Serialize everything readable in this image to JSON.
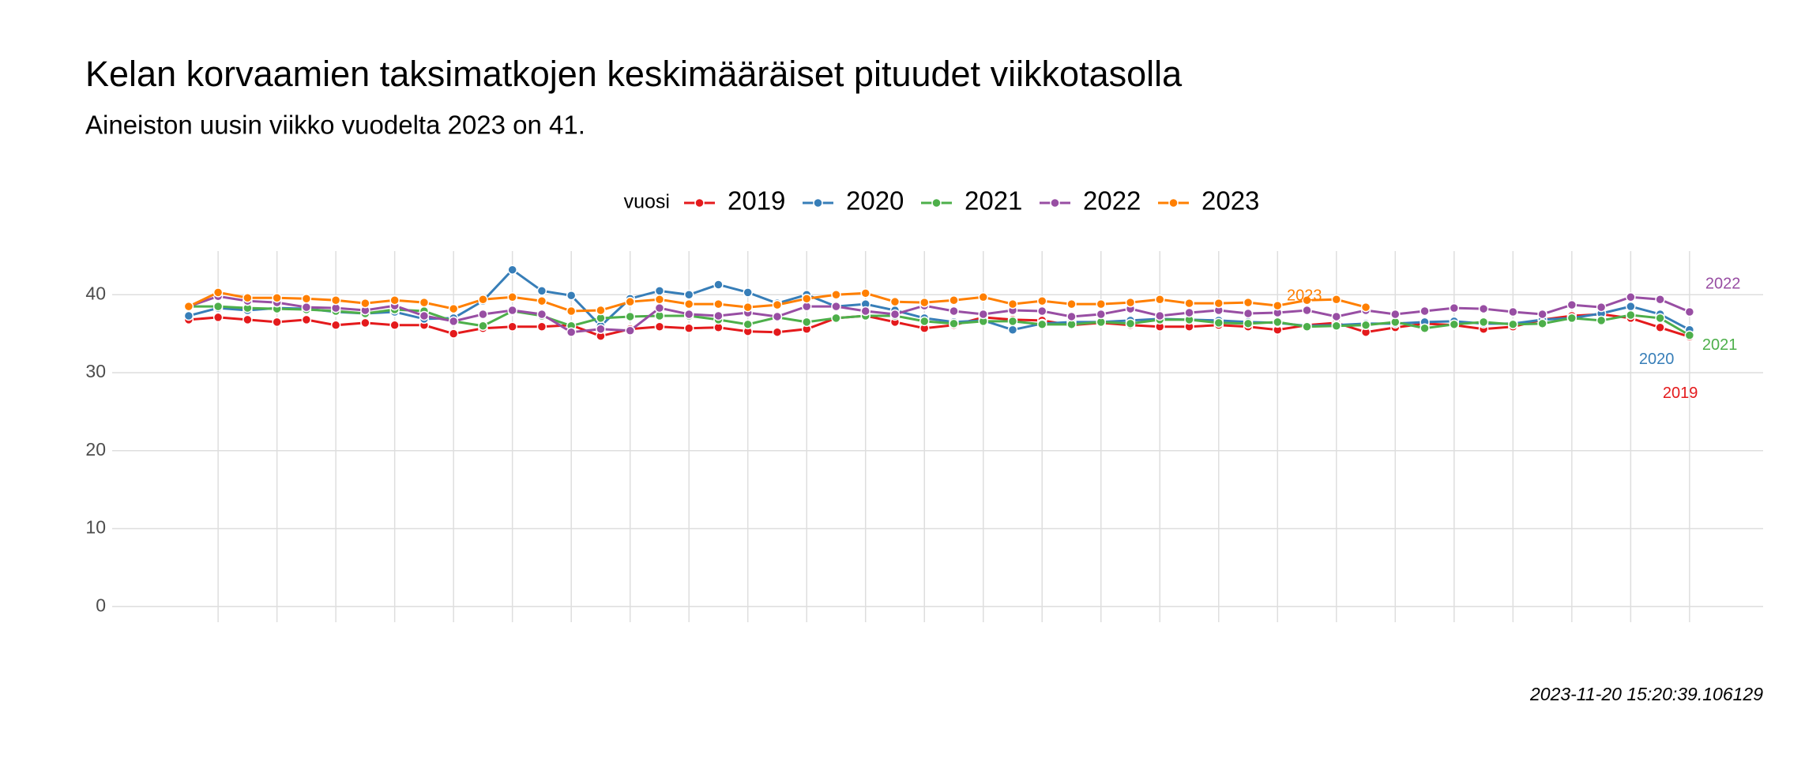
{
  "chart_data": {
    "type": "line",
    "title": "Kelan korvaamien taksimatkojen keskimääräiset pituudet viikkotasolla",
    "subtitle": "Aineiston uusin viikko vuodelta 2023 on 41.",
    "legend_title": "vuosi",
    "legend_position": "top",
    "caption": "2023-11-20 15:20:39.106129",
    "grid": true,
    "x": [
      1,
      2,
      3,
      4,
      5,
      6,
      7,
      8,
      9,
      10,
      11,
      12,
      13,
      14,
      15,
      16,
      17,
      18,
      19,
      20,
      21,
      22,
      23,
      24,
      25,
      26,
      27,
      28,
      29,
      30,
      31,
      32,
      33,
      34,
      35,
      36,
      37,
      38,
      39,
      40,
      41,
      42,
      43,
      44,
      45,
      46,
      47,
      48,
      49,
      50,
      51,
      52
    ],
    "xlim": [
      -1.6,
      54.5
    ],
    "xticks": [
      2,
      4,
      6,
      8,
      10,
      12,
      14,
      16,
      18,
      20,
      22,
      24,
      26,
      28,
      30,
      32,
      34,
      36,
      38,
      40,
      42,
      44,
      46,
      48,
      50,
      52
    ],
    "ylim": [
      -2,
      45.6
    ],
    "yticks": [
      0,
      10,
      20,
      30,
      40
    ],
    "series": [
      {
        "name": "2019",
        "color": "#e41a1c",
        "values": [
          36.8,
          37.1,
          36.8,
          36.5,
          36.8,
          36.1,
          36.4,
          36.1,
          36.1,
          35.0,
          35.7,
          35.9,
          35.9,
          36.1,
          34.7,
          35.6,
          35.9,
          35.7,
          35.8,
          35.3,
          35.2,
          35.6,
          37.0,
          37.3,
          36.5,
          35.7,
          36.1,
          37.1,
          36.8,
          36.7,
          36.1,
          36.4,
          36.1,
          35.9,
          35.9,
          36.1,
          35.9,
          35.5,
          36.1,
          36.4,
          35.2,
          35.8,
          36.3,
          36.1,
          35.6,
          35.9,
          36.8,
          37.3,
          37.5,
          37.0,
          35.8,
          34.6
        ]
      },
      {
        "name": "2020",
        "color": "#377eb8",
        "values": [
          37.3,
          38.3,
          38.0,
          38.3,
          38.2,
          37.8,
          37.6,
          37.8,
          36.9,
          37.0,
          39.2,
          43.2,
          40.5,
          39.9,
          36.0,
          39.5,
          40.5,
          40.0,
          41.3,
          40.3,
          38.9,
          40.0,
          38.5,
          38.8,
          38.0,
          37.0,
          36.5,
          36.7,
          35.5,
          36.3,
          36.5,
          36.5,
          36.7,
          36.9,
          36.8,
          36.7,
          36.5,
          36.4,
          36.0,
          36.1,
          36.3,
          36.3,
          36.5,
          36.6,
          36.3,
          36.3,
          36.8,
          37.0,
          37.6,
          38.5,
          37.5,
          35.5
        ]
      },
      {
        "name": "2021",
        "color": "#4daf4a",
        "values": [
          38.5,
          38.5,
          38.3,
          38.2,
          38.1,
          37.9,
          37.6,
          38.1,
          37.9,
          36.6,
          36.0,
          37.9,
          37.3,
          36.0,
          37.0,
          37.2,
          37.3,
          37.3,
          36.8,
          36.2,
          37.1,
          36.5,
          37.0,
          37.3,
          37.3,
          36.6,
          36.3,
          36.6,
          36.6,
          36.2,
          36.2,
          36.5,
          36.3,
          36.8,
          36.8,
          36.4,
          36.3,
          36.5,
          35.9,
          36.0,
          36.1,
          36.5,
          35.7,
          36.2,
          36.5,
          36.2,
          36.3,
          37.0,
          36.7,
          37.4,
          37.0,
          34.8
        ]
      },
      {
        "name": "2022",
        "color": "#984ea3",
        "values": [
          38.5,
          39.8,
          39.2,
          39.0,
          38.4,
          38.3,
          38.0,
          38.6,
          37.3,
          36.6,
          37.5,
          38.0,
          37.5,
          35.2,
          35.6,
          35.4,
          38.3,
          37.5,
          37.3,
          37.7,
          37.2,
          38.5,
          38.5,
          37.9,
          37.5,
          38.6,
          37.9,
          37.5,
          38.0,
          37.9,
          37.2,
          37.5,
          38.2,
          37.3,
          37.7,
          38.0,
          37.6,
          37.7,
          38.0,
          37.2,
          38.0,
          37.5,
          37.9,
          38.3,
          38.2,
          37.8,
          37.5,
          38.7,
          38.4,
          39.7,
          39.4,
          37.8
        ]
      },
      {
        "name": "2023",
        "color": "#ff7f00",
        "values": [
          38.5,
          40.3,
          39.6,
          39.6,
          39.5,
          39.3,
          38.9,
          39.3,
          39.0,
          38.2,
          39.4,
          39.7,
          39.2,
          37.9,
          38.0,
          39.1,
          39.4,
          38.8,
          38.8,
          38.4,
          38.7,
          39.5,
          40.0,
          40.2,
          39.1,
          39.0,
          39.3,
          39.7,
          38.8,
          39.2,
          38.8,
          38.8,
          39.0,
          39.4,
          38.9,
          38.9,
          39.0,
          38.6,
          39.3,
          39.4,
          38.4,
          null,
          null,
          null,
          null,
          null,
          null,
          null,
          null,
          null,
          null,
          null
        ]
      }
    ]
  }
}
